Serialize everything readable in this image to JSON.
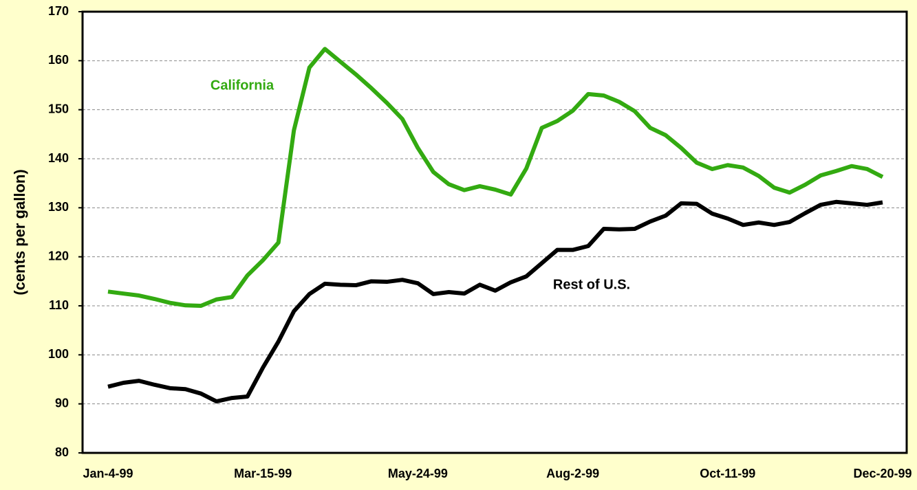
{
  "chart_data": {
    "type": "line",
    "y_label": "(cents per gallon)",
    "categories": [
      "Jan-4-99",
      null,
      null,
      null,
      null,
      null,
      null,
      null,
      null,
      null,
      "Mar-15-99",
      null,
      null,
      null,
      null,
      null,
      null,
      null,
      null,
      null,
      "May-24-99",
      null,
      null,
      null,
      null,
      null,
      null,
      null,
      null,
      null,
      "Aug-2-99",
      null,
      null,
      null,
      null,
      null,
      null,
      null,
      null,
      null,
      "Oct-11-99",
      null,
      null,
      null,
      null,
      null,
      null,
      null,
      null,
      null,
      "Dec-20-99"
    ],
    "series": [
      {
        "name": "California",
        "color": "#33aa11",
        "values": [
          112.9,
          112.5,
          112.1,
          111.4,
          110.6,
          110.1,
          110.0,
          111.3,
          111.8,
          116.2,
          119.3,
          122.9,
          145.8,
          158.6,
          162.4,
          159.8,
          157.2,
          154.4,
          151.4,
          148.1,
          142.2,
          137.3,
          134.8,
          133.6,
          134.4,
          133.7,
          132.7,
          138.0,
          146.3,
          147.7,
          149.8,
          153.2,
          152.9,
          151.6,
          149.7,
          146.3,
          144.8,
          142.2,
          139.2,
          137.9,
          138.7,
          138.2,
          136.5,
          134.1,
          133.1,
          134.7,
          136.6,
          137.5,
          138.5,
          137.9,
          136.3
        ]
      },
      {
        "name": "Rest of U.S.",
        "color": "#000000",
        "values": [
          93.5,
          94.3,
          94.7,
          93.9,
          93.2,
          93.0,
          92.1,
          90.5,
          91.2,
          91.5,
          97.4,
          102.7,
          108.9,
          112.4,
          114.5,
          114.3,
          114.2,
          115.0,
          114.9,
          115.3,
          114.6,
          112.4,
          112.8,
          112.5,
          114.3,
          113.1,
          114.8,
          116.0,
          118.7,
          121.4,
          121.4,
          122.2,
          125.7,
          125.6,
          125.7,
          127.2,
          128.4,
          130.9,
          130.8,
          128.8,
          127.8,
          126.5,
          127.0,
          126.5,
          127.1,
          128.9,
          130.6,
          131.2,
          130.9,
          130.6,
          131.1
        ]
      }
    ],
    "ylim": [
      80,
      170
    ],
    "yticks": [
      80,
      90,
      100,
      110,
      120,
      130,
      140,
      150,
      160,
      170
    ],
    "grid": true
  }
}
